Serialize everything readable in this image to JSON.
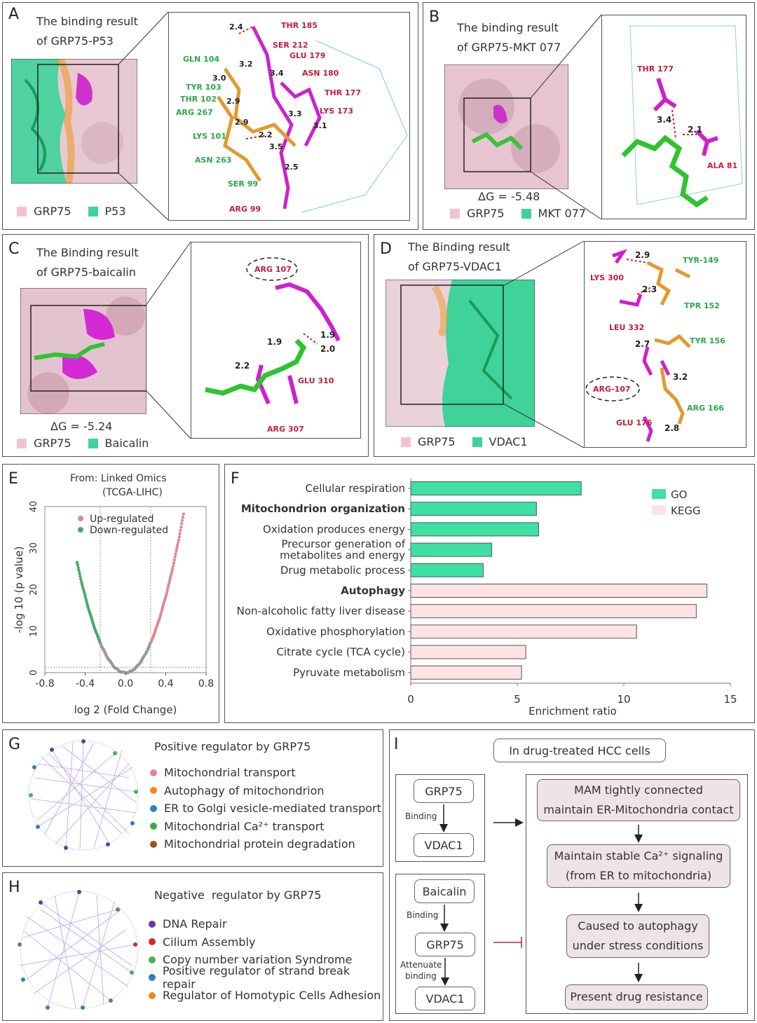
{
  "panelA": {
    "letter": "A",
    "title_line1": "The binding result",
    "title_line2": "of GRP75-P53",
    "legend": [
      "GRP75",
      "P53"
    ],
    "residues_red": [
      "THR 185",
      "SER 212",
      "GLU 179",
      "ASN 180",
      "THR 177",
      "LYS 173",
      "ARG 99"
    ],
    "residues_green": [
      "GLN 104",
      "TYR 103",
      "THR 102",
      "ARG 267",
      "LYS 101",
      "ASN 263",
      "SER 99"
    ],
    "distances": [
      "2.4",
      "3.2",
      "3.0",
      "3.4",
      "2.9",
      "3.3",
      "2.9",
      "3.1",
      "2.2",
      "3.5",
      "2.5"
    ]
  },
  "panelB": {
    "letter": "B",
    "title_line1": "The binding result",
    "title_line2": "of GRP75-MKT 077",
    "dg": "ΔG = -5.48",
    "legend": [
      "GRP75",
      "MKT 077"
    ],
    "residues_red": [
      "THR 177",
      "ALA 81"
    ],
    "distances": [
      "3.4",
      "2.1"
    ]
  },
  "panelC": {
    "letter": "C",
    "title_line1": "The Binding result",
    "title_line2": "of GRP75-baicalin",
    "dg": "ΔG = -5.24",
    "legend": [
      "GRP75",
      "Baicalin"
    ],
    "residues_red": [
      "ARG 107",
      "GLU 310",
      "ARG 307"
    ],
    "distances": [
      "1.9",
      "1.9",
      "2.0",
      "2.2"
    ]
  },
  "panelD": {
    "letter": "D",
    "title_line1": "The Binding result",
    "title_line2": "of GRP75-VDAC1",
    "legend": [
      "GRP75",
      "VDAC1"
    ],
    "residues_red": [
      "LYS 300",
      "LEU 332",
      "ARG-107",
      "GLU 176"
    ],
    "residues_green": [
      "TYR-149",
      "TPR 152",
      "TYR 156",
      "ARG 166"
    ],
    "distances": [
      "2.9",
      "2.3",
      "2.7",
      "3.2",
      "2.8"
    ]
  },
  "panelE": {
    "letter": "E",
    "source_line1": "From: Linked Omics",
    "source_line2": "(TCGA-LIHC)",
    "legend_up": "Up-regulated",
    "legend_down": "Down-regulated"
  },
  "panelF": {
    "letter": "F",
    "legend": [
      "GO",
      "KEGG"
    ]
  },
  "chart_data": [
    {
      "type": "scatter",
      "title": "From: Linked Omics (TCGA-LIHC)",
      "xlabel": "log 2 (Fold Change)",
      "ylabel": "-log 10 (p value)",
      "xlim": [
        -0.8,
        0.8
      ],
      "ylim": [
        0,
        40
      ],
      "xticks": [
        "-0.8",
        "-0.4",
        "0.0",
        "0.4",
        "0.8"
      ],
      "yticks": [
        "0",
        "10",
        "20",
        "30",
        "40"
      ],
      "threshold_x": [
        -0.25,
        0.25
      ],
      "threshold_y": 1.3,
      "series": [
        {
          "name": "Up-regulated",
          "color": "#d98a96"
        },
        {
          "name": "Down-regulated",
          "color": "#4aa86a"
        }
      ],
      "curve_coefficient": 115
    },
    {
      "type": "bar",
      "orientation": "horizontal",
      "xlabel": "Enrichment ratio",
      "xlim": [
        0,
        15
      ],
      "xticks": [
        "0",
        "5",
        "10",
        "15"
      ],
      "categories": [
        "Cellular respiration",
        "Mitochondrion organization",
        "Oxidation produces energy",
        "Precursor generation of|metabolites and energy",
        "Drug metabolic process",
        "Autophagy",
        "Non-alcoholic fatty liver disease",
        "Oxidative phosphorylation",
        "Citrate cycle (TCA cycle)",
        "Pyruvate metabolism"
      ],
      "values": [
        8.0,
        5.9,
        6.0,
        3.8,
        3.4,
        13.9,
        13.4,
        10.6,
        5.4,
        5.2
      ],
      "groups": [
        "GO",
        "GO",
        "GO",
        "GO",
        "GO",
        "KEGG",
        "KEGG",
        "KEGG",
        "KEGG",
        "KEGG"
      ],
      "bold": [
        false,
        true,
        false,
        false,
        false,
        true,
        false,
        false,
        false,
        false
      ]
    }
  ],
  "panelG": {
    "letter": "G",
    "title": "Positive regulator by GRP75",
    "items": [
      {
        "label": "Mitochondrial transport",
        "color": "#e67fa6"
      },
      {
        "label": "Autophagy of mitochondrion",
        "color": "#f08a1c"
      },
      {
        "label": "ER to Golgi vesicle-mediated transport",
        "color": "#2e7fc4"
      },
      {
        "label": "Mitochondrial Ca²⁺ transport",
        "color": "#3bab4a"
      },
      {
        "label": "Mitochondrial protein degradation",
        "color": "#a0521e"
      }
    ]
  },
  "panelH": {
    "letter": "H",
    "title": "Negative  regulator by GRP75",
    "items": [
      {
        "label": "DNA Repair",
        "color": "#6a3aa0"
      },
      {
        "label": "Cilium Assembly",
        "color": "#d42a2a"
      },
      {
        "label": "Copy number variation Syndrome",
        "color": "#4caf50"
      },
      {
        "label": "Positive regulator of strand break repair",
        "color": "#2e7fc4"
      },
      {
        "label": "Regulator of Homotypic Cells Adhesion",
        "color": "#f08a1c"
      }
    ]
  },
  "panelI": {
    "letter": "I",
    "header": "In drug-treated HCC cells",
    "grp75": "GRP75",
    "vdac1": "VDAC1",
    "baicalin": "Baicalin",
    "binding": "Binding",
    "attenuate": "Attenuate",
    "binding2": "binding",
    "step1_line1": "MAM tightly connected",
    "step1_line2": "maintain ER-Mitochondria contact",
    "step2_line1": "Maintain stable Ca²⁺ signaling",
    "step2_line2": "(from ER to mitochondria)",
    "step3_line1": "Caused to autophagy",
    "step3_line2": "under stress conditions",
    "step4": "Present drug resistance"
  }
}
